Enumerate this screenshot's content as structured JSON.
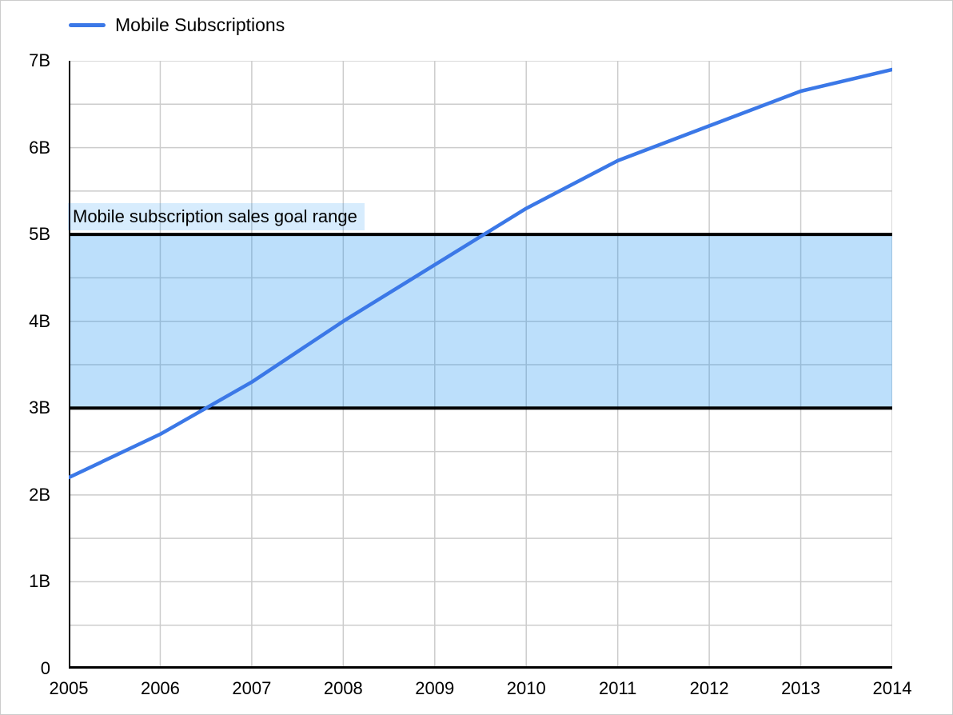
{
  "legend": {
    "label": "Mobile Subscriptions"
  },
  "annotation": {
    "label": "Mobile subscription sales goal range"
  },
  "colors": {
    "line": "#3b78e7",
    "band_fill": "rgba(33,150,243,0.30)",
    "band_border": "#000000",
    "annotation_bg": "rgba(33,150,243,0.18)",
    "grid": "#cccccc",
    "axis": "#000000",
    "background": "#ffffff"
  },
  "chart_data": {
    "type": "line",
    "title": "",
    "xlabel": "",
    "ylabel": "",
    "x": [
      2005,
      2006,
      2007,
      2008,
      2009,
      2010,
      2011,
      2012,
      2013,
      2014
    ],
    "x_tick_labels": [
      "2005",
      "2006",
      "2007",
      "2008",
      "2009",
      "2010",
      "2011",
      "2012",
      "2013",
      "2014"
    ],
    "series": [
      {
        "name": "Mobile Subscriptions",
        "values": [
          2.2,
          2.7,
          3.3,
          4.0,
          4.65,
          5.3,
          5.85,
          6.25,
          6.65,
          6.9
        ]
      }
    ],
    "unit": "billions",
    "ylim": [
      0,
      7
    ],
    "y_ticks": [
      {
        "value": 0,
        "label": "0"
      },
      {
        "value": 1,
        "label": "1B"
      },
      {
        "value": 2,
        "label": "2B"
      },
      {
        "value": 3,
        "label": "3B"
      },
      {
        "value": 4,
        "label": "4B"
      },
      {
        "value": 5,
        "label": "5B"
      },
      {
        "value": 6,
        "label": "6B"
      },
      {
        "value": 7,
        "label": "7B"
      }
    ],
    "minor_grid_step": 0.5,
    "grid": true,
    "legend_position": "top-left",
    "goal_band": {
      "label": "Mobile subscription sales goal range",
      "min": 3,
      "max": 5
    }
  }
}
